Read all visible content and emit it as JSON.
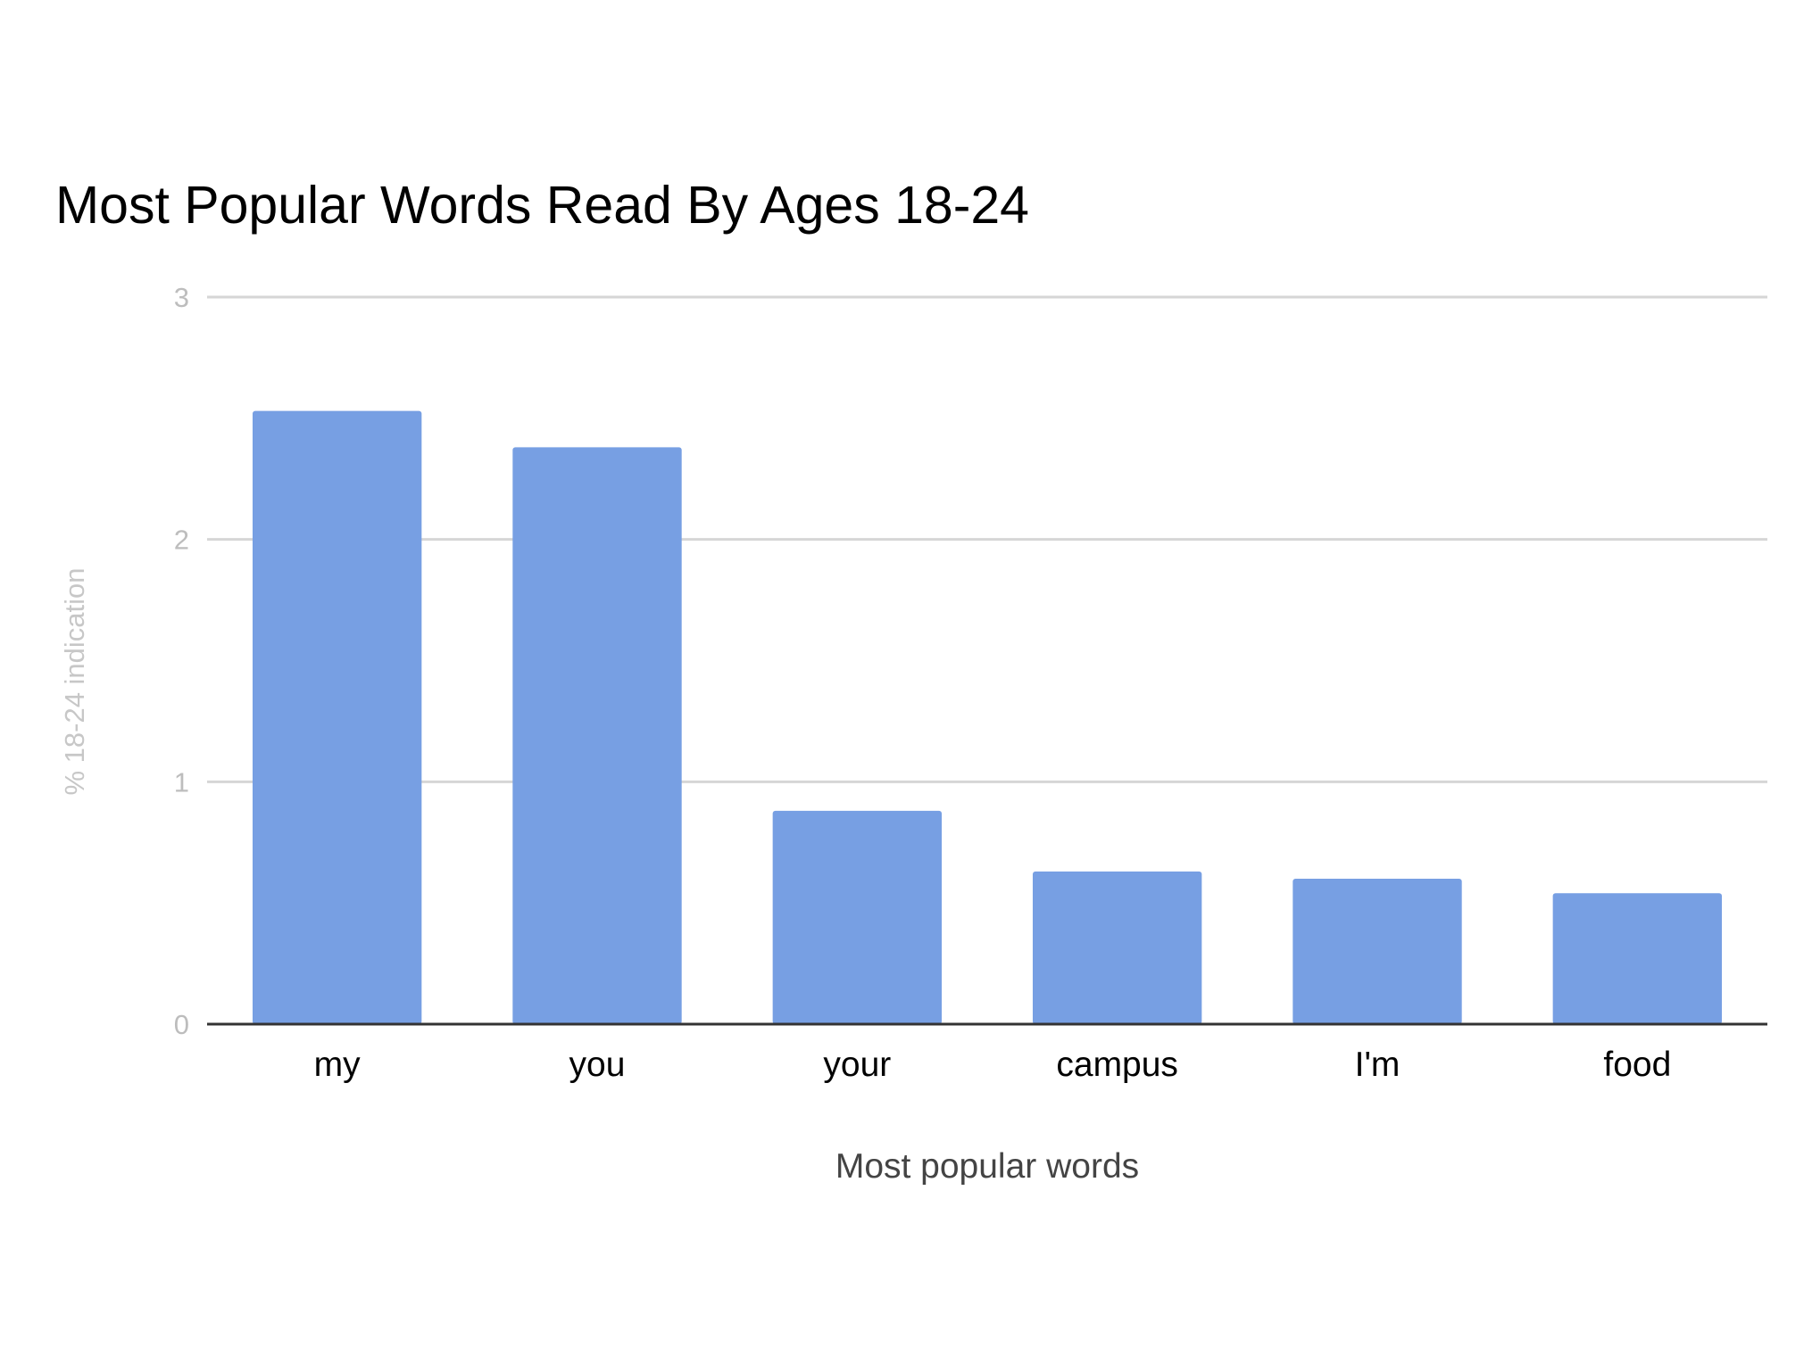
{
  "chart_data": {
    "type": "bar",
    "title": "Most Popular Words Read By Ages 18-24",
    "xlabel": "Most popular words",
    "ylabel": "% 18-24 indication",
    "categories": [
      "my",
      "you",
      "your",
      "campus",
      "I'm",
      "food"
    ],
    "values": [
      2.53,
      2.38,
      0.88,
      0.63,
      0.6,
      0.54
    ],
    "ylim": [
      0,
      3
    ],
    "yticks": [
      "0",
      "1",
      "2",
      "3"
    ],
    "grid": true,
    "bar_color": "#779fe3"
  }
}
